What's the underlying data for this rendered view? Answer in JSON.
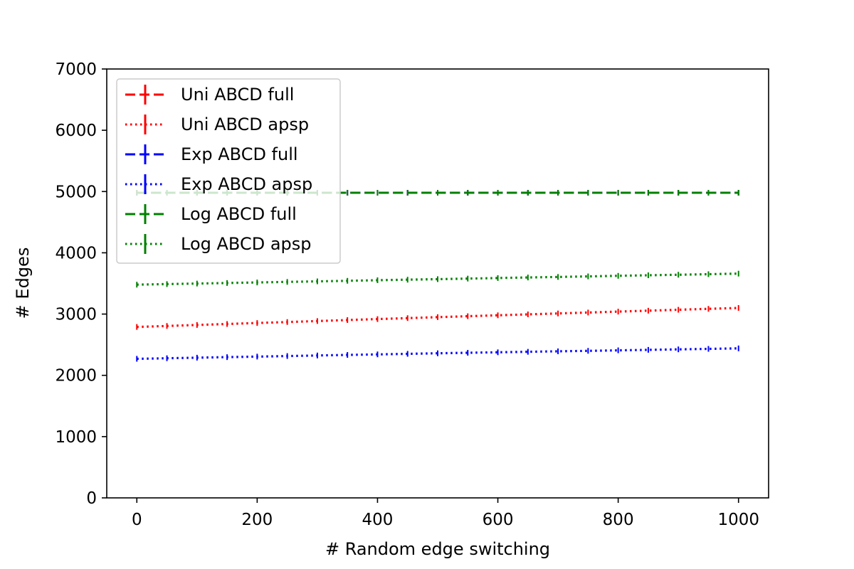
{
  "chart_data": {
    "type": "line",
    "title": "",
    "xlabel": "# Random edge switching",
    "ylabel": "# Edges",
    "xlim": [
      -50,
      1050
    ],
    "ylim": [
      0,
      7000
    ],
    "xticks": [
      0,
      200,
      400,
      600,
      800,
      1000
    ],
    "yticks": [
      0,
      1000,
      2000,
      3000,
      4000,
      5000,
      6000,
      7000
    ],
    "grid": false,
    "legend_position": "upper-left",
    "x": [
      0,
      50,
      100,
      150,
      200,
      250,
      300,
      350,
      400,
      450,
      500,
      550,
      600,
      650,
      700,
      750,
      800,
      850,
      900,
      950,
      1000
    ],
    "series": [
      {
        "name": "Uni ABCD full",
        "color": "#ff0000",
        "style": "dashed",
        "values": [
          4980,
          4980,
          4980,
          4980,
          4980,
          4980,
          4980,
          4980,
          4980,
          4980,
          4980,
          4980,
          4980,
          4980,
          4980,
          4980,
          4980,
          4980,
          4980,
          4980,
          4980
        ]
      },
      {
        "name": "Uni ABCD apsp",
        "color": "#ff0000",
        "style": "dotted",
        "values": [
          2790,
          2806,
          2822,
          2838,
          2854,
          2870,
          2886,
          2902,
          2918,
          2934,
          2950,
          2965,
          2980,
          2995,
          3010,
          3025,
          3040,
          3055,
          3070,
          3085,
          3100
        ]
      },
      {
        "name": "Exp ABCD full",
        "color": "#0000ff",
        "style": "dashed",
        "values": [
          4980,
          4980,
          4980,
          4980,
          4980,
          4980,
          4980,
          4980,
          4980,
          4980,
          4980,
          4980,
          4980,
          4980,
          4980,
          4980,
          4980,
          4980,
          4980,
          4980,
          4980
        ]
      },
      {
        "name": "Exp ABCD apsp",
        "color": "#0000ff",
        "style": "dotted",
        "values": [
          2270,
          2279,
          2288,
          2297,
          2306,
          2315,
          2324,
          2333,
          2342,
          2351,
          2360,
          2368,
          2376,
          2384,
          2392,
          2400,
          2408,
          2416,
          2424,
          2432,
          2440
        ]
      },
      {
        "name": "Log ABCD full",
        "color": "#008000",
        "style": "dashed",
        "values": [
          4980,
          4980,
          4980,
          4980,
          4980,
          4980,
          4980,
          4980,
          4980,
          4980,
          4980,
          4980,
          4980,
          4980,
          4980,
          4980,
          4980,
          4980,
          4980,
          4980,
          4980
        ]
      },
      {
        "name": "Log ABCD apsp",
        "color": "#008000",
        "style": "dotted",
        "values": [
          3480,
          3489,
          3498,
          3507,
          3516,
          3525,
          3534,
          3543,
          3552,
          3561,
          3570,
          3579,
          3588,
          3597,
          3606,
          3615,
          3624,
          3633,
          3642,
          3651,
          3660
        ]
      }
    ]
  }
}
